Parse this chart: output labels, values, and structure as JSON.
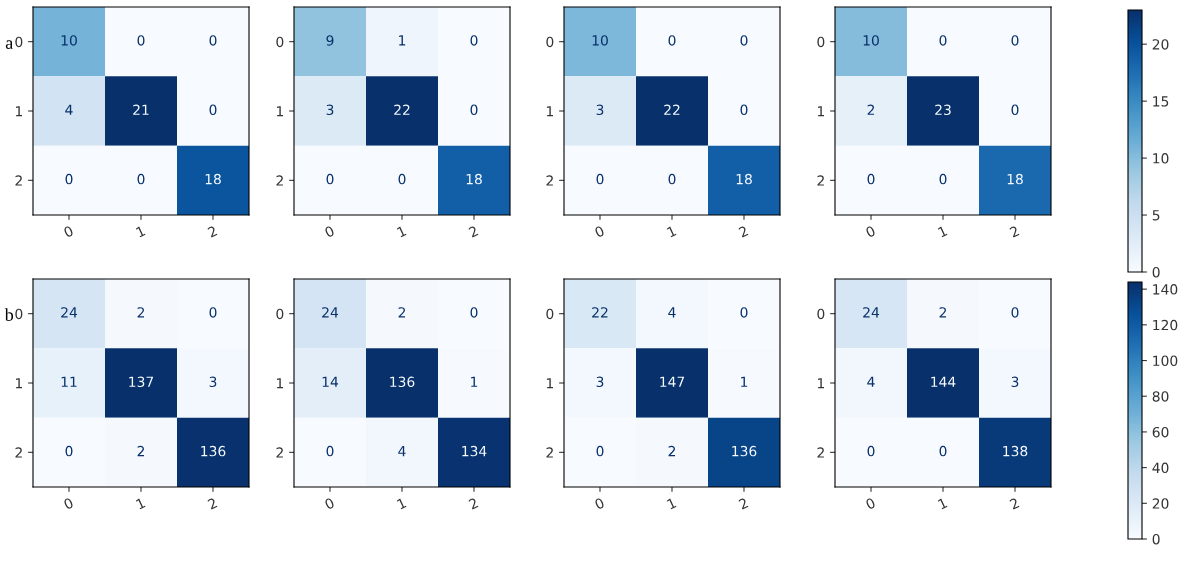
{
  "chart_data": [
    {
      "type": "heatmap",
      "annotations": [
        "a"
      ],
      "categories": [
        "0",
        "1",
        "2"
      ],
      "y_categories": [
        "0",
        "1",
        "2"
      ],
      "cells": [
        [
          10,
          0,
          0
        ],
        [
          4,
          21,
          0
        ],
        [
          0,
          0,
          18
        ]
      ],
      "data_labels": true
    },
    {
      "type": "heatmap",
      "categories": [
        "0",
        "1",
        "2"
      ],
      "y_categories": [
        "0",
        "1",
        "2"
      ],
      "cells": [
        [
          9,
          1,
          0
        ],
        [
          3,
          22,
          0
        ],
        [
          0,
          0,
          18
        ]
      ],
      "data_labels": true
    },
    {
      "type": "heatmap",
      "categories": [
        "0",
        "1",
        "2"
      ],
      "y_categories": [
        "0",
        "1",
        "2"
      ],
      "cells": [
        [
          10,
          0,
          0
        ],
        [
          3,
          22,
          0
        ],
        [
          0,
          0,
          18
        ]
      ],
      "data_labels": true
    },
    {
      "type": "heatmap",
      "categories": [
        "0",
        "1",
        "2"
      ],
      "y_categories": [
        "0",
        "1",
        "2"
      ],
      "cells": [
        [
          10,
          0,
          0
        ],
        [
          2,
          23,
          0
        ],
        [
          0,
          0,
          18
        ]
      ],
      "clim": [
        0,
        23
      ],
      "cticks": [
        0,
        5,
        10,
        15,
        20
      ],
      "data_labels": true
    },
    {
      "type": "heatmap",
      "annotations": [
        "b"
      ],
      "categories": [
        "0",
        "1",
        "2"
      ],
      "y_categories": [
        "0",
        "1",
        "2"
      ],
      "cells": [
        [
          24,
          2,
          0
        ],
        [
          11,
          137,
          3
        ],
        [
          0,
          2,
          136
        ]
      ],
      "data_labels": true
    },
    {
      "type": "heatmap",
      "categories": [
        "0",
        "1",
        "2"
      ],
      "y_categories": [
        "0",
        "1",
        "2"
      ],
      "cells": [
        [
          24,
          2,
          0
        ],
        [
          14,
          136,
          1
        ],
        [
          0,
          4,
          134
        ]
      ],
      "data_labels": true
    },
    {
      "type": "heatmap",
      "categories": [
        "0",
        "1",
        "2"
      ],
      "y_categories": [
        "0",
        "1",
        "2"
      ],
      "cells": [
        [
          22,
          4,
          0
        ],
        [
          3,
          147,
          1
        ],
        [
          0,
          2,
          136
        ]
      ],
      "data_labels": true
    },
    {
      "type": "heatmap",
      "categories": [
        "0",
        "1",
        "2"
      ],
      "y_categories": [
        "0",
        "1",
        "2"
      ],
      "cells": [
        [
          24,
          2,
          0
        ],
        [
          4,
          144,
          3
        ],
        [
          0,
          0,
          138
        ]
      ],
      "clim": [
        0,
        144
      ],
      "cticks": [
        0,
        20,
        40,
        60,
        80,
        100,
        120,
        140
      ],
      "data_labels": true
    }
  ]
}
